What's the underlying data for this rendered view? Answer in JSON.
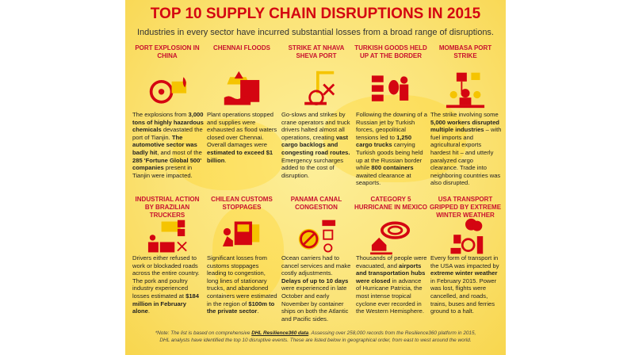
{
  "title": "TOP 10 SUPPLY CHAIN DISRUPTIONS IN 2015",
  "subtitle": "Industries in every sector have incurred substantial losses from a broad range of disruptions.",
  "colors": {
    "red": "#d40511",
    "yellow": "#fbe377",
    "text": "#222222"
  },
  "items": [
    {
      "heading": "PORT EXPLOSION IN CHINA",
      "icon": "biohazard-icon",
      "body": [
        {
          "t": "The explosions from "
        },
        {
          "t": "3,000 tons of highly hazardous chemicals",
          "b": 1
        },
        {
          "t": " devastated the port of Tianjin. "
        },
        {
          "t": "The automotive sector was badly hit",
          "b": 1
        },
        {
          "t": ", and most of the "
        },
        {
          "t": "285 'Fortune Global 500' companies",
          "b": 1
        },
        {
          "t": " present in Tianjin were impacted."
        }
      ]
    },
    {
      "heading": "CHENNAI FLOODS",
      "icon": "flood-icon",
      "body": [
        {
          "t": "Plant operations stopped and supplies were exhausted as flood waters closed over Chennai. Overall damages were "
        },
        {
          "t": "estimated to exceed $1 billion",
          "b": 1
        },
        {
          "t": "."
        }
      ]
    },
    {
      "heading": "STRIKE AT NHAVA SHEVA PORT",
      "icon": "snail-crane-icon",
      "body": [
        {
          "t": "Go-slows and strikes by crane operators and truck drivers halted almost all operations, creating "
        },
        {
          "t": "vast cargo backlogs and congesting road routes.",
          "b": 1
        },
        {
          "t": " Emergency surcharges added to the cost of disruption."
        }
      ]
    },
    {
      "heading": "TURKISH GOODS HELD UP AT THE BORDER",
      "icon": "trucks-stop-icon",
      "body": [
        {
          "t": "Following the downing of a Russian jet by Turkish forces, geopolitical tensions led to "
        },
        {
          "t": "1,250 cargo trucks",
          "b": 1
        },
        {
          "t": " carrying Turkish goods being held up at the Russian border while "
        },
        {
          "t": "800 containers",
          "b": 1
        },
        {
          "t": " awaited clearance at seaports."
        }
      ]
    },
    {
      "heading": "MOMBASA PORT STRIKE",
      "icon": "strike-workers-icon",
      "body": [
        {
          "t": "The strike involving some "
        },
        {
          "t": "5,000 workers disrupted multiple industries",
          "b": 1
        },
        {
          "t": " – with fuel imports and agricultural exports hardest hit – and utterly paralyzed cargo clearance. Trade into neighboring countries was also disrupted."
        }
      ]
    },
    {
      "heading": "INDUSTRIAL ACTION BY BRAZILIAN TRUCKERS",
      "icon": "truckers-protest-icon",
      "body": [
        {
          "t": "Drivers either refused to work or blockaded roads across the entire country. The pork and poultry industry experienced losses estimated at "
        },
        {
          "t": "$184 million in February alone",
          "b": 1
        },
        {
          "t": "."
        }
      ]
    },
    {
      "heading": "CHILEAN CUSTOMS STOPPAGES",
      "icon": "customs-truck-icon",
      "body": [
        {
          "t": "Significant losses from customs stoppages leading to congestion, long lines of stationary trucks, and abandoned containers were estimated in the region of "
        },
        {
          "t": "$100m to the private sector",
          "b": 1
        },
        {
          "t": "."
        }
      ]
    },
    {
      "heading": "PANAMA CANAL CONGESTION",
      "icon": "canal-ship-icon",
      "body": [
        {
          "t": "Ocean carriers had to cancel services and make costly adjustments. "
        },
        {
          "t": "Delays of up to 10 days",
          "b": 1
        },
        {
          "t": " were experienced in late October and early November by container ships on both the Atlantic and Pacific sides."
        }
      ]
    },
    {
      "heading": "CATEGORY 5 HURRICANE IN MEXICO",
      "icon": "hurricane-icon",
      "body": [
        {
          "t": "Thousands of people were evacuated, and "
        },
        {
          "t": "airports and transportation hubs were closed",
          "b": 1
        },
        {
          "t": " in advance of Hurricane Patricia, the most intense tropical cyclone ever recorded in the Western Hemisphere."
        }
      ]
    },
    {
      "heading": "USA TRANSPORT GRIPPED BY EXTREME WINTER WEATHER",
      "icon": "winter-storm-icon",
      "body": [
        {
          "t": "Every form of transport in the USA was impacted by "
        },
        {
          "t": "extreme winter weather",
          "b": 1
        },
        {
          "t": " in February 2015. Power was lost, flights were cancelled, and roads, trains, buses and ferries ground to a halt."
        }
      ]
    }
  ],
  "note": {
    "pre": "*Note: The list is based on comprehensive ",
    "link": "DHL Resilience360 data",
    "post": ". Assessing over 258,000 records from the Resilience360 platform in 2015,",
    "line2": "DHL analysts have identified the top 10 disruptive events. These are listed below in geographical order, from east to west around the world."
  }
}
